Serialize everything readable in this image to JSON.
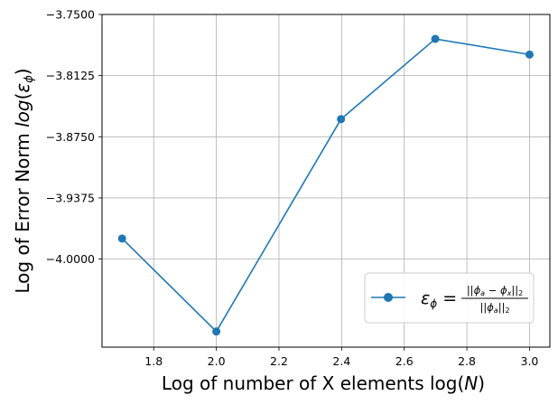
{
  "chart_data": {
    "type": "line",
    "x": [
      1.699,
      2.0,
      2.398,
      2.699,
      3.0
    ],
    "series": [
      {
        "name": "ε_φ = ||φa − φx||2 / ||φa||2",
        "values": [
          -3.979,
          -4.074,
          -3.857,
          -3.775,
          -3.791
        ],
        "color": "#1f77b4",
        "marker": "circle"
      }
    ],
    "xlabel": "Log of number of X elements log(N)",
    "ylabel": "Log of Error Norm log(εφ)",
    "xlim": [
      1.635,
      3.065
    ],
    "ylim": [
      -4.09,
      -3.75
    ],
    "xticks": [
      "1.8",
      "2.0",
      "2.2",
      "2.4",
      "2.6",
      "2.8",
      "3.0"
    ],
    "yticks": [
      "−3.7500",
      "−3.8125",
      "−3.8750",
      "−3.9375",
      "−4.0000"
    ],
    "grid": true,
    "legend": "bottom-right"
  }
}
